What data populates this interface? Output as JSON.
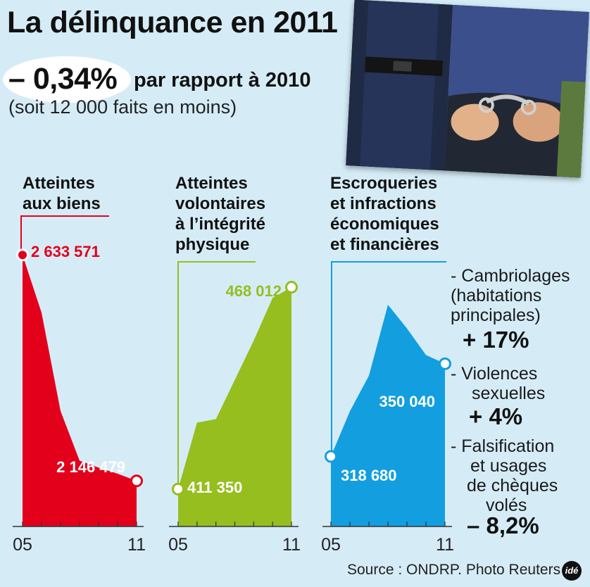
{
  "header": {
    "title": "La délinquance en 2011",
    "delta": "– 0,34%",
    "compare": "par rapport à 2010",
    "subtitle": "(soit 12 000 faits en moins)"
  },
  "photo": {
    "subject": "police officer handcuffing a man",
    "credit_visible": false
  },
  "chart_data": [
    {
      "type": "area",
      "title": "Atteintes aux biens",
      "title_lines": [
        "Atteintes",
        "aux biens"
      ],
      "color": "#e3001b",
      "x": [
        2005,
        2006,
        2007,
        2008,
        2009,
        2010,
        2011
      ],
      "values": [
        2633571,
        2509000,
        2297000,
        2190000,
        2175000,
        2162000,
        2146479
      ],
      "ylim": [
        2080000,
        2640000
      ],
      "x_tick_labels": [
        "05",
        "11"
      ],
      "start_label": "2 633 571",
      "end_label": "2 146 479"
    },
    {
      "type": "area",
      "title": "Atteintes volontaires à l’intégrité physique",
      "title_lines": [
        "Atteintes",
        "volontaires",
        "à l’intégrité",
        "physique"
      ],
      "color": "#96be1e",
      "x": [
        2005,
        2006,
        2007,
        2008,
        2009,
        2010,
        2011
      ],
      "values": [
        411350,
        430000,
        431000,
        442000,
        453000,
        465000,
        468012
      ],
      "ylim": [
        405000,
        470000
      ],
      "x_tick_labels": [
        "05",
        "11"
      ],
      "start_label": "411 350",
      "end_label": "468 012"
    },
    {
      "type": "area",
      "title": "Escroqueries et infractions économiques et financières",
      "title_lines": [
        "Escroqueries",
        "et infractions",
        "économiques",
        "et financières"
      ],
      "color": "#139ee0",
      "x": [
        2005,
        2006,
        2007,
        2008,
        2009,
        2010,
        2011
      ],
      "values": [
        318680,
        334000,
        346000,
        370000,
        362000,
        353000,
        350040
      ],
      "ylim": [
        300000,
        375000
      ],
      "x_tick_labels": [
        "05",
        "11"
      ],
      "start_label": "318 680",
      "end_label": "350 040"
    }
  ],
  "sidebar": [
    {
      "lines": [
        "- Cambriolages",
        "(habitations",
        "principales)"
      ],
      "value": "+ 17%"
    },
    {
      "lines": [
        "- Violences",
        "sexuelles"
      ],
      "value": "+ 4%"
    },
    {
      "lines": [
        "- Falsification",
        "et usages",
        "de chèques",
        "volés"
      ],
      "value": "– 8,2%"
    }
  ],
  "footer": {
    "source": "Source : ONDRP. Photo Reuters",
    "logo": "idé"
  }
}
